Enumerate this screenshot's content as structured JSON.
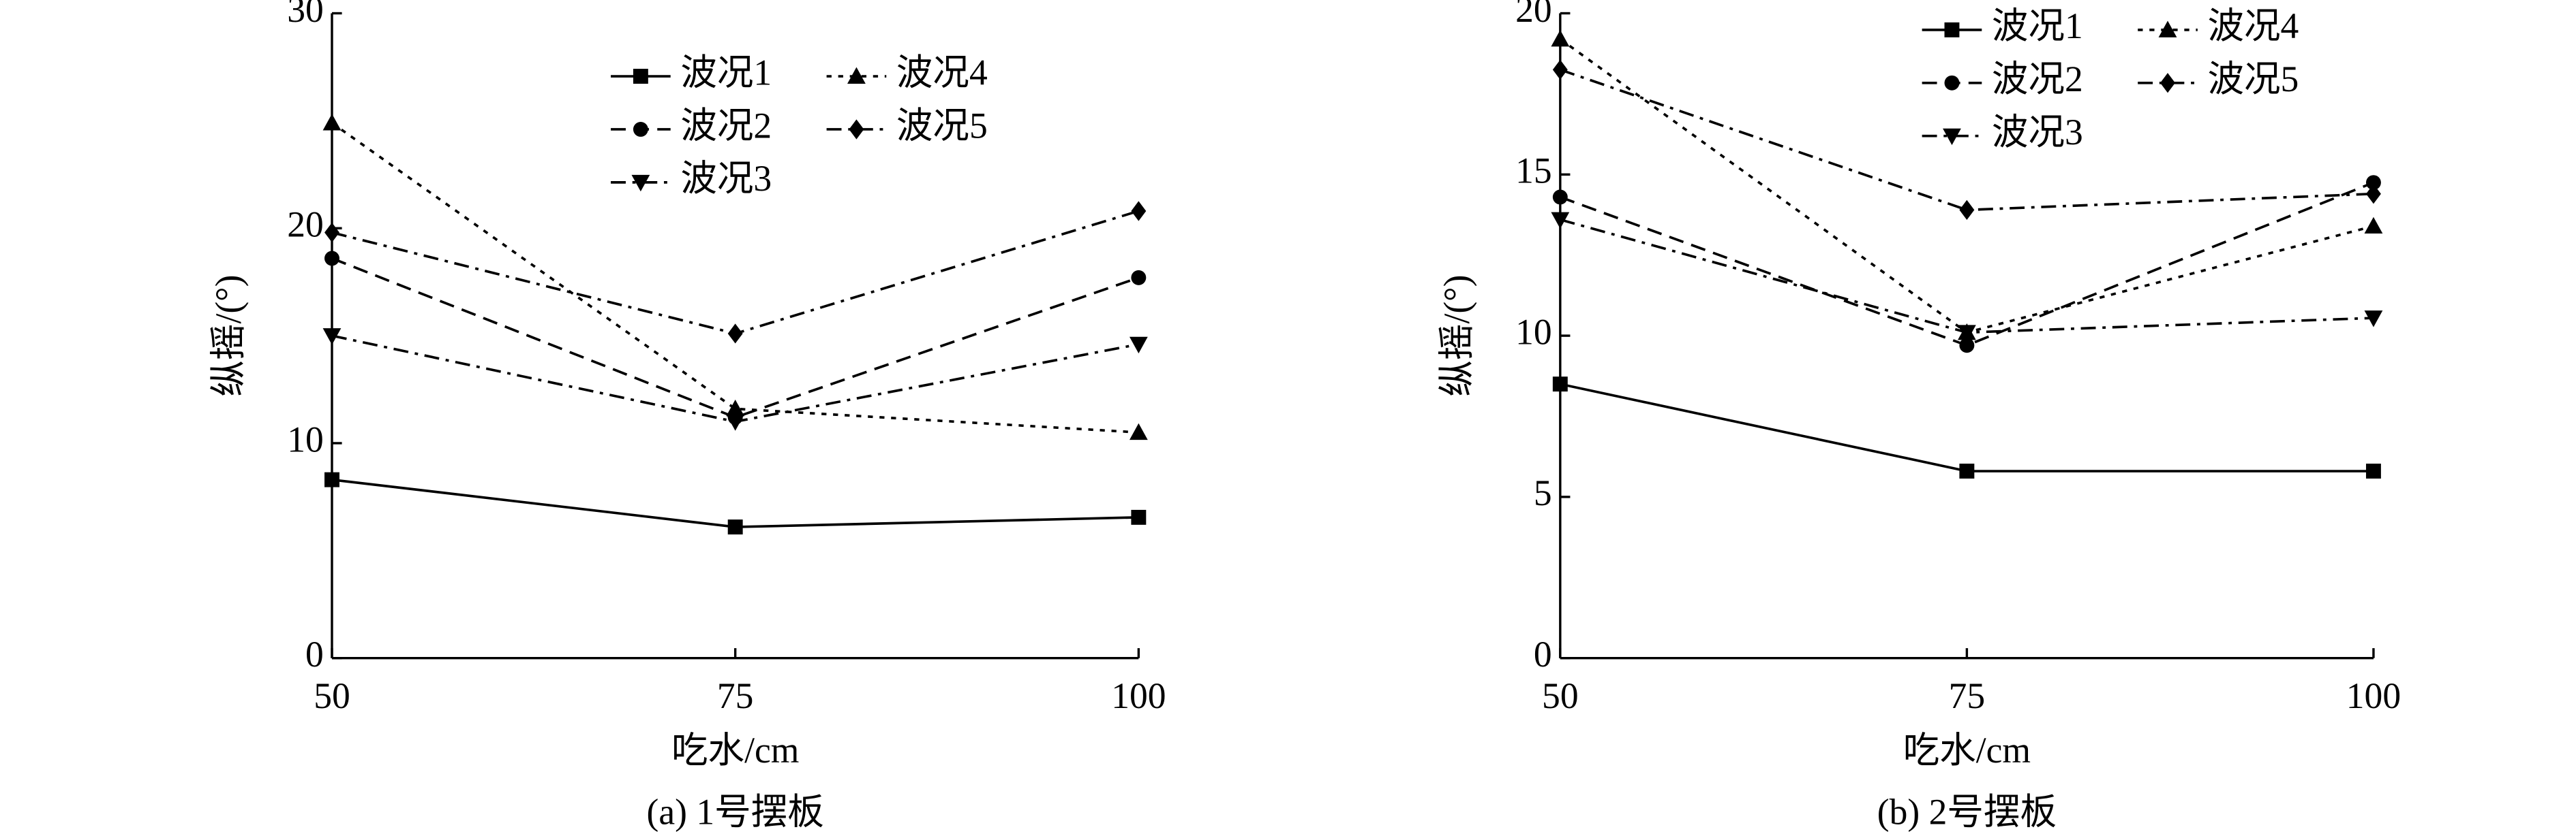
{
  "chart_data": [
    {
      "type": "line",
      "caption": "(a) 1号摆板",
      "xlabel": "吃水/cm",
      "ylabel": "纵摇/(°)",
      "x": [
        50,
        75,
        100
      ],
      "xlim": [
        50,
        100
      ],
      "xticks": [
        50,
        75,
        100
      ],
      "ylim": [
        0,
        30
      ],
      "yticks": [
        0,
        10,
        20,
        30
      ],
      "legend": "upper center",
      "series": [
        {
          "name": "波况1",
          "color": "#000000",
          "marker": "square",
          "linestyle": "solid",
          "values": [
            8.3,
            6.1,
            6.55
          ]
        },
        {
          "name": "波况2",
          "color": "#000000",
          "marker": "circle",
          "linestyle": "dashed",
          "values": [
            18.6,
            11.2,
            17.7
          ]
        },
        {
          "name": "波况3",
          "color": "#000000",
          "marker": "triangle-down",
          "linestyle": "dashdot",
          "values": [
            15.0,
            11.0,
            14.6
          ]
        },
        {
          "name": "波况4",
          "color": "#000000",
          "marker": "triangle-up",
          "linestyle": "dotted",
          "values": [
            24.9,
            11.6,
            10.5
          ]
        },
        {
          "name": "波况5",
          "color": "#000000",
          "marker": "diamond",
          "linestyle": "dashdot",
          "values": [
            19.8,
            15.1,
            20.8
          ]
        }
      ]
    },
    {
      "type": "line",
      "caption": "(b) 2号摆板",
      "xlabel": "吃水/cm",
      "ylabel": "纵摇/(°)",
      "x": [
        50,
        75,
        100
      ],
      "xlim": [
        50,
        100
      ],
      "xticks": [
        50,
        75,
        100
      ],
      "ylim": [
        0,
        20
      ],
      "yticks": [
        0,
        5,
        10,
        15,
        20
      ],
      "legend": "upper right",
      "series": [
        {
          "name": "波况1",
          "color": "#000000",
          "marker": "square",
          "linestyle": "solid",
          "values": [
            8.5,
            5.8,
            5.8
          ]
        },
        {
          "name": "波况2",
          "color": "#000000",
          "marker": "circle",
          "linestyle": "dashed",
          "values": [
            14.3,
            9.7,
            14.75
          ]
        },
        {
          "name": "波况3",
          "color": "#000000",
          "marker": "triangle-down",
          "linestyle": "dashdot",
          "values": [
            13.6,
            10.1,
            10.55
          ]
        },
        {
          "name": "波况4",
          "color": "#000000",
          "marker": "triangle-up",
          "linestyle": "dotted",
          "values": [
            19.2,
            10.1,
            13.4
          ]
        },
        {
          "name": "波况5",
          "color": "#000000",
          "marker": "diamond",
          "linestyle": "dashdot",
          "values": [
            18.25,
            13.9,
            14.4
          ]
        }
      ]
    }
  ]
}
